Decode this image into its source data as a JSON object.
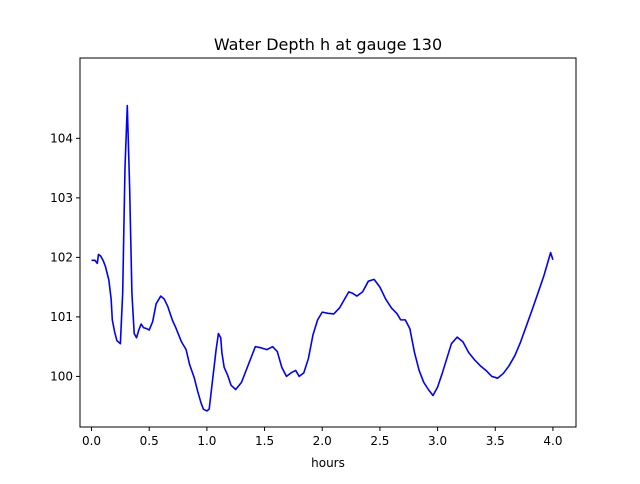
{
  "chart_data": {
    "type": "line",
    "title": "Water Depth h at gauge 130",
    "xlabel": "hours",
    "ylabel": "",
    "xlim": [
      -0.1,
      4.2
    ],
    "ylim": [
      99.15,
      105.35
    ],
    "xticks": [
      {
        "value": 0.0,
        "label": "0.0"
      },
      {
        "value": 0.5,
        "label": "0.5"
      },
      {
        "value": 1.0,
        "label": "1.0"
      },
      {
        "value": 1.5,
        "label": "1.5"
      },
      {
        "value": 2.0,
        "label": "2.0"
      },
      {
        "value": 2.5,
        "label": "2.5"
      },
      {
        "value": 3.0,
        "label": "3.0"
      },
      {
        "value": 3.5,
        "label": "3.5"
      },
      {
        "value": 4.0,
        "label": "4.0"
      }
    ],
    "yticks": [
      {
        "value": 100,
        "label": "100"
      },
      {
        "value": 101,
        "label": "101"
      },
      {
        "value": 102,
        "label": "102"
      },
      {
        "value": 103,
        "label": "103"
      },
      {
        "value": 104,
        "label": "104"
      }
    ],
    "grid": false,
    "legend": "none",
    "color": "#0000ff",
    "series": [
      {
        "x": [
          0.0,
          0.03,
          0.05,
          0.06,
          0.08,
          0.1,
          0.12,
          0.15,
          0.17,
          0.18,
          0.2,
          0.22,
          0.25,
          0.27,
          0.29,
          0.31,
          0.33,
          0.35,
          0.37,
          0.39,
          0.41,
          0.43,
          0.45,
          0.48,
          0.5,
          0.53,
          0.56,
          0.6,
          0.63,
          0.66,
          0.7,
          0.73,
          0.78,
          0.82,
          0.85,
          0.89,
          0.92,
          0.95,
          0.97,
          1.0,
          1.02,
          1.05,
          1.08,
          1.1,
          1.12,
          1.13,
          1.15,
          1.18,
          1.21,
          1.25,
          1.3,
          1.36,
          1.42,
          1.47,
          1.52,
          1.57,
          1.61,
          1.65,
          1.69,
          1.73,
          1.77,
          1.8,
          1.84,
          1.88,
          1.92,
          1.96,
          2.0,
          2.05,
          2.1,
          2.15,
          2.2,
          2.23,
          2.26,
          2.3,
          2.35,
          2.4,
          2.45,
          2.5,
          2.55,
          2.6,
          2.65,
          2.68,
          2.72,
          2.76,
          2.8,
          2.84,
          2.88,
          2.92,
          2.96,
          3.0,
          3.04,
          3.08,
          3.12,
          3.17,
          3.22,
          3.27,
          3.32,
          3.37,
          3.42,
          3.47,
          3.52,
          3.57,
          3.62,
          3.67,
          3.72,
          3.77,
          3.82,
          3.87,
          3.92,
          3.95,
          3.98,
          4.0
        ],
        "y": [
          101.95,
          101.95,
          101.9,
          102.05,
          102.02,
          101.95,
          101.85,
          101.62,
          101.3,
          100.95,
          100.75,
          100.6,
          100.55,
          101.4,
          103.5,
          104.55,
          103.2,
          101.4,
          100.72,
          100.65,
          100.78,
          100.88,
          100.82,
          100.8,
          100.78,
          100.92,
          101.22,
          101.35,
          101.3,
          101.18,
          100.95,
          100.82,
          100.58,
          100.45,
          100.2,
          99.98,
          99.75,
          99.55,
          99.45,
          99.42,
          99.45,
          99.95,
          100.45,
          100.72,
          100.65,
          100.4,
          100.15,
          100.02,
          99.85,
          99.78,
          99.9,
          100.2,
          100.5,
          100.48,
          100.45,
          100.5,
          100.42,
          100.15,
          100.0,
          100.06,
          100.1,
          100.0,
          100.06,
          100.3,
          100.7,
          100.95,
          101.08,
          101.06,
          101.05,
          101.15,
          101.32,
          101.42,
          101.4,
          101.35,
          101.42,
          101.6,
          101.63,
          101.5,
          101.3,
          101.15,
          101.05,
          100.95,
          100.95,
          100.8,
          100.4,
          100.1,
          99.9,
          99.78,
          99.68,
          99.82,
          100.05,
          100.3,
          100.55,
          100.66,
          100.58,
          100.4,
          100.28,
          100.18,
          100.1,
          100.0,
          99.97,
          100.05,
          100.18,
          100.35,
          100.58,
          100.85,
          101.12,
          101.4,
          101.68,
          101.88,
          102.08,
          101.96
        ]
      }
    ]
  }
}
